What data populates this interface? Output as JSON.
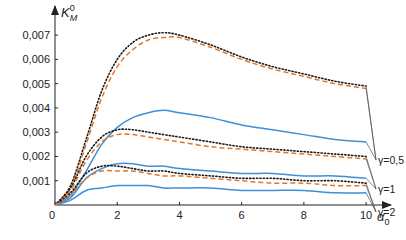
{
  "chart_data": {
    "type": "line",
    "xlabel": {
      "base": "α",
      "sub": "0"
    },
    "ylabel": {
      "base": "K",
      "sub": "M",
      "sup": "0"
    },
    "x": [
      0,
      0.5,
      1,
      1.5,
      2,
      2.5,
      3,
      3.5,
      4,
      5,
      6,
      7,
      8,
      9,
      10
    ],
    "xlim": [
      0,
      10.8
    ],
    "ylim": [
      0,
      0.0082
    ],
    "xticks": [
      0,
      2,
      4,
      6,
      8,
      10
    ],
    "yticks": [
      {
        "value": 0.001,
        "label": "0,001"
      },
      {
        "value": 0.002,
        "label": "0,002"
      },
      {
        "value": 0.003,
        "label": "0,003"
      },
      {
        "value": 0.004,
        "label": "0,004"
      },
      {
        "value": 0.005,
        "label": "0,005"
      },
      {
        "value": 0.006,
        "label": "0,006"
      },
      {
        "value": 0.007,
        "label": "0,007"
      }
    ],
    "grid": false,
    "series": [
      {
        "color": "#3d8fd6",
        "line_style": "solid",
        "values": [
          0,
          0.0004,
          0.0014,
          0.0025,
          0.0032,
          0.0036,
          0.0038,
          0.0039,
          0.0038,
          0.0036,
          0.0033,
          0.0031,
          0.0029,
          0.0027,
          0.0026
        ]
      },
      {
        "color": "#1a1a1a",
        "line_style": "dotted",
        "values": [
          0,
          0.0008,
          0.0027,
          0.0047,
          0.006,
          0.0067,
          0.007,
          0.0071,
          0.007,
          0.0066,
          0.0061,
          0.0057,
          0.0054,
          0.0051,
          0.0049
        ]
      },
      {
        "color": "#e0772a",
        "line_style": "dashed",
        "values": [
          0,
          0.0007,
          0.0025,
          0.0044,
          0.0057,
          0.0064,
          0.0068,
          0.0069,
          0.0069,
          0.0065,
          0.006,
          0.0056,
          0.0053,
          0.005,
          0.0048
        ]
      },
      {
        "color": "#3d8fd6",
        "line_style": "solid",
        "values": [
          0,
          0.0003,
          0.0011,
          0.0015,
          0.0017,
          0.0017,
          0.0016,
          0.0016,
          0.0015,
          0.0014,
          0.0013,
          0.0013,
          0.0012,
          0.0012,
          0.0011
        ]
      },
      {
        "color": "#1a1a1a",
        "line_style": "dotted",
        "values": [
          0,
          0.0007,
          0.002,
          0.0028,
          0.0031,
          0.0031,
          0.003,
          0.0029,
          0.0028,
          0.0026,
          0.0024,
          0.0023,
          0.0022,
          0.0021,
          0.002
        ]
      },
      {
        "color": "#e0772a",
        "line_style": "dashed",
        "values": [
          0,
          0.0006,
          0.0018,
          0.0026,
          0.0029,
          0.0029,
          0.0028,
          0.0027,
          0.0026,
          0.0024,
          0.0023,
          0.0022,
          0.0021,
          0.002,
          0.0019
        ]
      },
      {
        "color": "#3d8fd6",
        "line_style": "solid",
        "values": [
          0,
          0.0002,
          0.0006,
          0.0007,
          0.0008,
          0.0008,
          0.0008,
          0.0007,
          0.0007,
          0.0007,
          0.0006,
          0.0006,
          0.0006,
          0.0005,
          0.0005
        ]
      },
      {
        "color": "#1a1a1a",
        "line_style": "dotted",
        "values": [
          0,
          0.0005,
          0.0013,
          0.0016,
          0.0016,
          0.0015,
          0.0014,
          0.0014,
          0.0013,
          0.0012,
          0.0011,
          0.0011,
          0.001,
          0.001,
          0.0009
        ]
      },
      {
        "color": "#e0772a",
        "line_style": "dashed",
        "values": [
          0,
          0.0004,
          0.0011,
          0.0014,
          0.0014,
          0.0014,
          0.0013,
          0.0012,
          0.0012,
          0.0011,
          0.001,
          0.0009,
          0.0009,
          0.0008,
          0.0008
        ]
      }
    ],
    "annotations": [
      {
        "text": "γ=0,5"
      },
      {
        "text": "γ=1"
      },
      {
        "text": "γ=2"
      }
    ]
  }
}
